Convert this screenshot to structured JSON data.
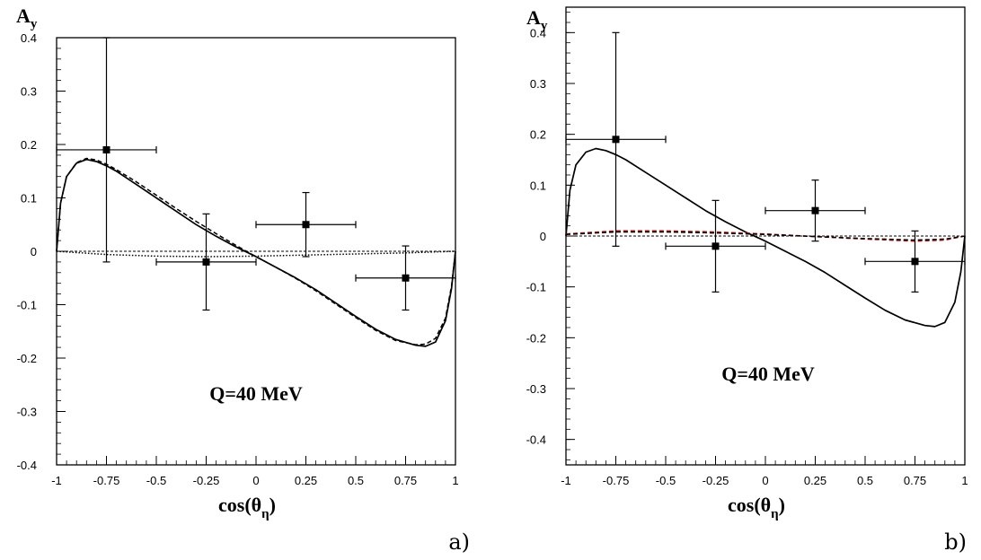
{
  "chart_data": [
    {
      "type": "line",
      "panel_label": "a)",
      "ylabel": "A",
      "ylabel_sub": "y",
      "xlabel_pre": "cos(θ",
      "xlabel_sub": "η",
      "xlabel_post": ")",
      "annotation": "Q=40 MeV",
      "xlim": [
        -1,
        1
      ],
      "ylim": [
        -0.4,
        0.4
      ],
      "x_ticks": [
        -1,
        -0.75,
        -0.5,
        -0.25,
        0,
        0.25,
        0.5,
        0.75,
        1
      ],
      "x_tick_labels": [
        "-1",
        "-0.75",
        "-0.5",
        "-0.25",
        "0",
        "0.25",
        "0.5",
        "0.75",
        "1"
      ],
      "y_ticks": [
        -0.4,
        -0.3,
        -0.2,
        -0.1,
        0,
        0.1,
        0.2,
        0.3,
        0.4
      ],
      "y_tick_labels": [
        "-0.4",
        "-0.3",
        "-0.2",
        "-0.1",
        "0",
        "0.1",
        "0.2",
        "0.3",
        "0.4"
      ],
      "data_points": [
        {
          "x": -0.75,
          "y": 0.19,
          "xerr": 0.25,
          "yerr_low": 0.21,
          "yerr_high": 0.21
        },
        {
          "x": -0.25,
          "y": -0.02,
          "xerr": 0.25,
          "yerr_low": 0.09,
          "yerr_high": 0.09
        },
        {
          "x": 0.25,
          "y": 0.05,
          "xerr": 0.25,
          "yerr_low": 0.06,
          "yerr_high": 0.06
        },
        {
          "x": 0.75,
          "y": -0.05,
          "xerr": 0.25,
          "yerr_low": 0.06,
          "yerr_high": 0.06
        }
      ],
      "series": [
        {
          "style": "solid",
          "color": "#000000",
          "x": [
            -1,
            -0.98,
            -0.95,
            -0.9,
            -0.85,
            -0.8,
            -0.75,
            -0.7,
            -0.6,
            -0.5,
            -0.4,
            -0.3,
            -0.2,
            -0.1,
            0,
            0.1,
            0.2,
            0.3,
            0.4,
            0.5,
            0.6,
            0.7,
            0.8,
            0.85,
            0.9,
            0.95,
            0.98,
            1
          ],
          "y": [
            0,
            0.09,
            0.14,
            0.165,
            0.172,
            0.168,
            0.16,
            0.15,
            0.125,
            0.1,
            0.075,
            0.05,
            0.028,
            0.008,
            -0.01,
            -0.03,
            -0.05,
            -0.072,
            -0.097,
            -0.122,
            -0.146,
            -0.165,
            -0.176,
            -0.178,
            -0.17,
            -0.13,
            -0.07,
            0
          ]
        },
        {
          "style": "dashed",
          "color": "#000000",
          "x": [
            -1,
            -0.98,
            -0.95,
            -0.9,
            -0.85,
            -0.8,
            -0.75,
            -0.7,
            -0.6,
            -0.5,
            -0.4,
            -0.3,
            -0.2,
            -0.1,
            0,
            0.1,
            0.2,
            0.3,
            0.4,
            0.5,
            0.6,
            0.7,
            0.8,
            0.85,
            0.9,
            0.95,
            0.98,
            1
          ],
          "y": [
            0,
            0.09,
            0.14,
            0.166,
            0.174,
            0.171,
            0.163,
            0.153,
            0.13,
            0.105,
            0.08,
            0.056,
            0.033,
            0.011,
            -0.01,
            -0.03,
            -0.051,
            -0.074,
            -0.099,
            -0.124,
            -0.148,
            -0.167,
            -0.175,
            -0.174,
            -0.163,
            -0.125,
            -0.065,
            0
          ]
        },
        {
          "style": "dotted",
          "color": "#000000",
          "x": [
            -1,
            -0.75,
            -0.5,
            -0.25,
            0,
            0.25,
            0.5,
            0.75,
            1
          ],
          "y": [
            0,
            -0.006,
            -0.009,
            -0.01,
            -0.009,
            -0.007,
            -0.005,
            -0.003,
            0
          ]
        },
        {
          "style": "dash-thin",
          "color": "#000000",
          "x": [
            -1,
            1
          ],
          "y": [
            0,
            0
          ]
        }
      ]
    },
    {
      "type": "line",
      "panel_label": "b)",
      "ylabel": "A",
      "ylabel_sub": "y",
      "xlabel_pre": "cos(θ",
      "xlabel_sub": "η",
      "xlabel_post": ")",
      "annotation": "Q=40 MeV",
      "xlim": [
        -1,
        1
      ],
      "ylim": [
        -0.45,
        0.45
      ],
      "x_ticks": [
        -1,
        -0.75,
        -0.5,
        -0.25,
        0,
        0.25,
        0.5,
        0.75,
        1
      ],
      "x_tick_labels": [
        "-1",
        "-0.75",
        "-0.5",
        "-0.25",
        "0",
        "0.25",
        "0.5",
        "0.75",
        "1"
      ],
      "y_ticks": [
        -0.4,
        -0.3,
        -0.2,
        -0.1,
        0,
        0.1,
        0.2,
        0.3,
        0.4
      ],
      "y_tick_labels": [
        "-0.4",
        "-0.3",
        "-0.2",
        "-0.1",
        "0",
        "0.1",
        "0.2",
        "0.3",
        "0.4"
      ],
      "data_points": [
        {
          "x": -0.75,
          "y": 0.19,
          "xerr": 0.25,
          "yerr_low": 0.21,
          "yerr_high": 0.21
        },
        {
          "x": -0.25,
          "y": -0.02,
          "xerr": 0.25,
          "yerr_low": 0.09,
          "yerr_high": 0.09
        },
        {
          "x": 0.25,
          "y": 0.05,
          "xerr": 0.25,
          "yerr_low": 0.06,
          "yerr_high": 0.06
        },
        {
          "x": 0.75,
          "y": -0.05,
          "xerr": 0.25,
          "yerr_low": 0.06,
          "yerr_high": 0.06
        }
      ],
      "series": [
        {
          "style": "solid",
          "color": "#000000",
          "x": [
            -1,
            -0.98,
            -0.95,
            -0.9,
            -0.85,
            -0.8,
            -0.75,
            -0.7,
            -0.6,
            -0.5,
            -0.4,
            -0.3,
            -0.2,
            -0.1,
            0,
            0.1,
            0.2,
            0.3,
            0.4,
            0.5,
            0.6,
            0.7,
            0.8,
            0.85,
            0.9,
            0.95,
            0.98,
            1
          ],
          "y": [
            0,
            0.09,
            0.14,
            0.165,
            0.172,
            0.168,
            0.16,
            0.15,
            0.125,
            0.1,
            0.075,
            0.05,
            0.028,
            0.008,
            -0.01,
            -0.03,
            -0.05,
            -0.072,
            -0.097,
            -0.122,
            -0.146,
            -0.165,
            -0.176,
            -0.178,
            -0.17,
            -0.13,
            -0.07,
            0
          ]
        },
        {
          "style": "dashed",
          "color": "#cc0000",
          "x": [
            -1,
            -0.75,
            -0.5,
            -0.25,
            0,
            0.25,
            0.5,
            0.75,
            0.9,
            1
          ],
          "y": [
            0.004,
            0.01,
            0.01,
            0.008,
            0.004,
            -0.001,
            -0.006,
            -0.01,
            -0.008,
            0
          ]
        },
        {
          "style": "dashed",
          "color": "#000000",
          "x": [
            -1,
            -0.75,
            -0.5,
            -0.25,
            0,
            0.25,
            0.5,
            0.75,
            0.9,
            1
          ],
          "y": [
            0.003,
            0.008,
            0.008,
            0.006,
            0.003,
            -0.001,
            -0.005,
            -0.008,
            -0.006,
            0
          ]
        },
        {
          "style": "dash-thin",
          "color": "#000000",
          "x": [
            -1,
            1
          ],
          "y": [
            0,
            0
          ]
        }
      ]
    }
  ]
}
